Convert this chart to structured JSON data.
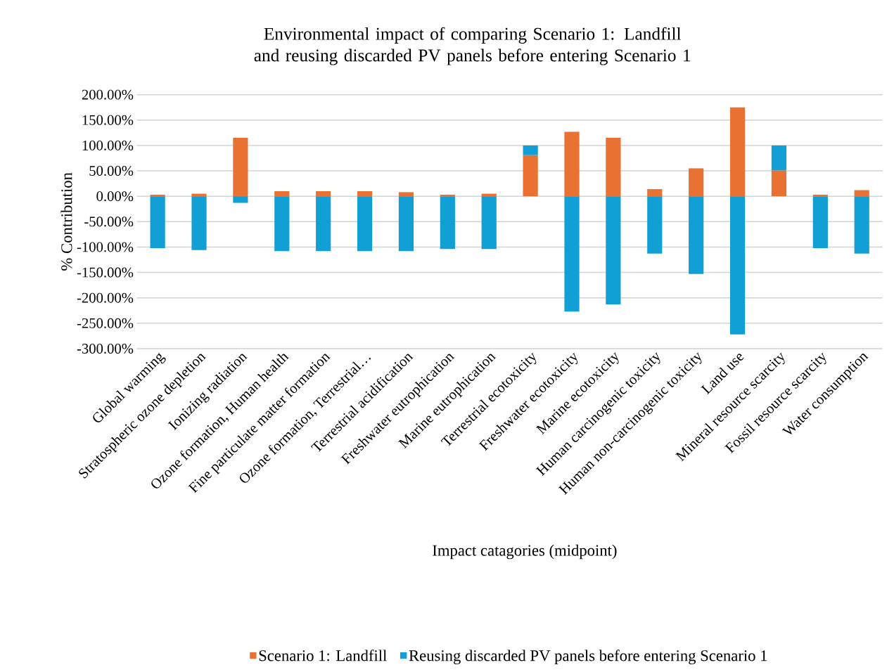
{
  "chart_data": {
    "type": "bar",
    "stacked": true,
    "title": "Environmental impact of comparing Scenario 1: Landfill and reusing discarded PV panels before entering Scenario 1",
    "xlabel": "Impact catagories (midpoint)",
    "ylabel": "% Contribution",
    "categories": [
      "Global warming",
      "Stratospheric ozone depletion",
      "Ionizing radiation",
      "Ozone formation, Human health",
      "Fine particulate matter formation",
      "Ozone formation, Terrestrial…",
      "Terrestrial acidification",
      "Freshwater eutrophication",
      "Marine eutrophication",
      "Terrestrial ecotoxicity",
      "Freshwater ecotoxicity",
      "Marine ecotoxicity",
      "Human carcinogenic toxicity",
      "Human non-carcinogenic toxicity",
      "Land use",
      "Mineral resource scarcity",
      "Fossil resource scarcity",
      "Water consumption"
    ],
    "series": [
      {
        "name": "Scenario 1: Landfill",
        "color": "#e97132",
        "values": [
          3,
          5,
          115,
          10,
          10,
          10,
          8,
          3,
          5,
          81,
          127,
          115,
          14,
          55,
          175,
          51,
          3,
          12
        ]
      },
      {
        "name": "Reusing discarded PV panels before entering Scenario 1",
        "color": "#119fd6",
        "values": [
          -102,
          -106,
          -13,
          -108,
          -108,
          -108,
          -108,
          -104,
          -104,
          19,
          -227,
          -213,
          -113,
          -153,
          -272,
          49,
          -102,
          -113
        ]
      }
    ],
    "ylim": [
      -300,
      200
    ],
    "yticks": [
      {
        "value": -300,
        "label": "-300.00%"
      },
      {
        "value": -250,
        "label": "-250.00%"
      },
      {
        "value": -200,
        "label": "-200.00%"
      },
      {
        "value": -150,
        "label": "-150.00%"
      },
      {
        "value": -100,
        "label": "-100.00%"
      },
      {
        "value": -50,
        "label": "-50.00%"
      },
      {
        "value": 0,
        "label": "0.00%"
      },
      {
        "value": 50,
        "label": "50.00%"
      },
      {
        "value": 100,
        "label": "100.00%"
      },
      {
        "value": 150,
        "label": "150.00%"
      },
      {
        "value": 200,
        "label": "200.00%"
      }
    ],
    "grid": "y",
    "legend": "bottom"
  }
}
